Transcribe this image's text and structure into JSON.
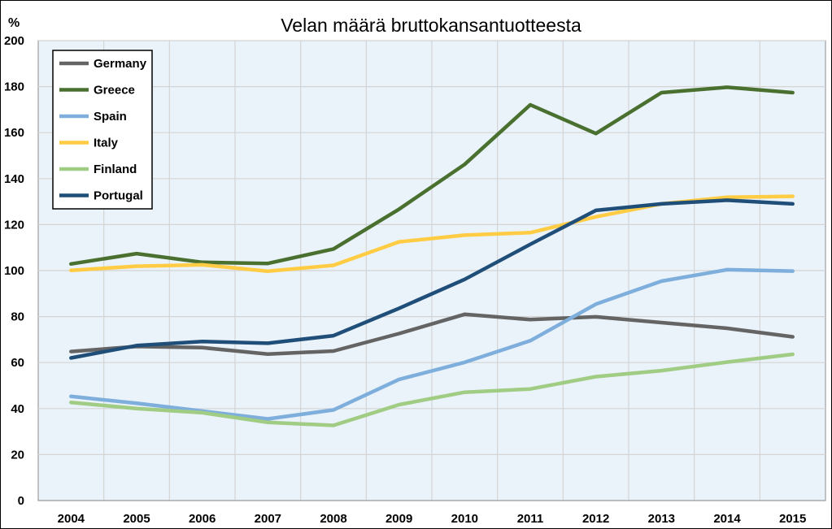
{
  "chart_data": {
    "type": "line",
    "title": "Velan määrä bruttokansantuotteesta",
    "ylabel": "%",
    "xlabel": "",
    "ylim": [
      0,
      200
    ],
    "yticks": [
      0,
      20,
      40,
      60,
      80,
      100,
      120,
      140,
      160,
      180,
      200
    ],
    "grid": true,
    "legend_position": "top-left",
    "plot_background": "#EAF2FA",
    "categories": [
      "2004",
      "2005",
      "2006",
      "2007",
      "2008",
      "2009",
      "2010",
      "2011",
      "2012",
      "2013",
      "2014",
      "2015"
    ],
    "series": [
      {
        "name": "Germany",
        "color": "#646464",
        "values": [
          64.8,
          67.0,
          66.5,
          63.7,
          65.0,
          72.6,
          81.0,
          78.7,
          79.9,
          77.4,
          74.9,
          71.2
        ]
      },
      {
        "name": "Greece",
        "color": "#4A7030",
        "values": [
          102.9,
          107.4,
          103.6,
          103.1,
          109.4,
          126.7,
          146.2,
          172.1,
          159.6,
          177.4,
          179.7,
          177.4
        ]
      },
      {
        "name": "Spain",
        "color": "#7EAEDC",
        "values": [
          45.3,
          42.3,
          38.9,
          35.5,
          39.4,
          52.7,
          60.1,
          69.5,
          85.4,
          95.4,
          100.4,
          99.8
        ]
      },
      {
        "name": "Italy",
        "color": "#FFCC44",
        "values": [
          100.1,
          101.9,
          102.5,
          99.7,
          102.3,
          112.5,
          115.4,
          116.5,
          123.4,
          129.0,
          131.9,
          132.3
        ]
      },
      {
        "name": "Finland",
        "color": "#A0CC84",
        "values": [
          42.7,
          40.0,
          38.2,
          34.0,
          32.7,
          41.7,
          47.1,
          48.5,
          53.9,
          56.5,
          60.2,
          63.6
        ]
      },
      {
        "name": "Portugal",
        "color": "#1F4E79",
        "values": [
          62.0,
          67.4,
          69.2,
          68.4,
          71.7,
          83.6,
          96.2,
          111.4,
          126.2,
          129.0,
          130.6,
          129.0
        ]
      }
    ]
  }
}
